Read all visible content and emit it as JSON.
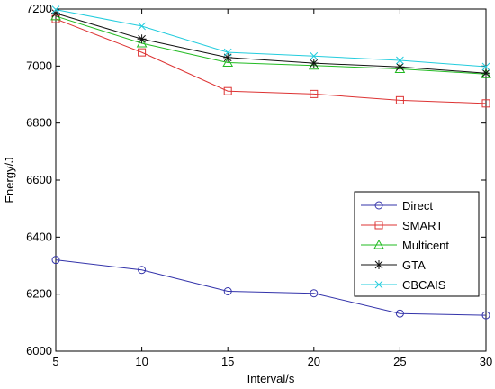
{
  "chart_data": {
    "type": "line",
    "title": "",
    "xlabel": "Interval/s",
    "ylabel": "Energy/J",
    "x": [
      5,
      10,
      15,
      20,
      25,
      30
    ],
    "xlim": [
      5,
      30
    ],
    "ylim": [
      6000,
      7200
    ],
    "xticks": [
      "5",
      "10",
      "15",
      "20",
      "25",
      "30"
    ],
    "yticks": [
      "6000",
      "6200",
      "6400",
      "6600",
      "6800",
      "7000",
      "7200"
    ],
    "grid": false,
    "legend_position": "right",
    "series": [
      {
        "name": "Direct",
        "color": "#3333aa",
        "marker": "circle",
        "values": [
          6320,
          6285,
          6210,
          6203,
          6132,
          6126
        ]
      },
      {
        "name": "SMART",
        "color": "#dd3333",
        "marker": "square",
        "values": [
          7165,
          7048,
          6912,
          6902,
          6880,
          6869
        ]
      },
      {
        "name": "Multicent",
        "color": "#22bb22",
        "marker": "triangle",
        "values": [
          7175,
          7080,
          7012,
          7002,
          6990,
          6972
        ]
      },
      {
        "name": "GTA",
        "color": "#111111",
        "marker": "star",
        "values": [
          7185,
          7095,
          7030,
          7010,
          6997,
          6975
        ]
      },
      {
        "name": "CBCAIS",
        "color": "#22ccdd",
        "marker": "x",
        "values": [
          7198,
          7140,
          7048,
          7035,
          7020,
          6998
        ]
      }
    ]
  }
}
